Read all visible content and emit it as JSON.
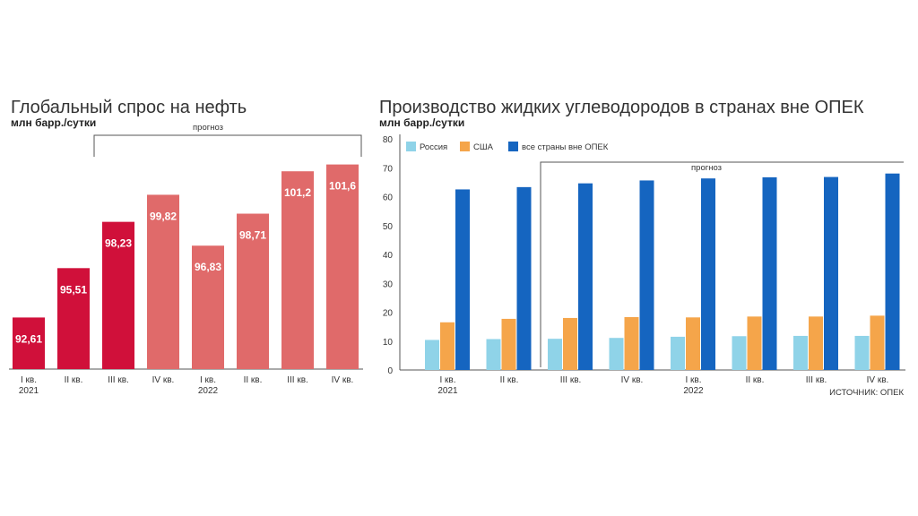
{
  "chart_data": [
    {
      "type": "bar",
      "title": "Глобальный спрос на нефть",
      "ylabel": "млн барр./сутки",
      "forecast_label": "прогноз",
      "categories": [
        "I кв.",
        "II кв.",
        "III кв.",
        "IV кв.",
        "I кв.",
        "II кв.",
        "III кв.",
        "IV кв."
      ],
      "years": [
        "2021",
        "",
        "",
        "",
        "2022",
        "",
        "",
        ""
      ],
      "values": [
        92.61,
        95.51,
        98.23,
        99.82,
        96.83,
        98.71,
        101.2,
        101.6
      ],
      "value_labels": [
        "92,61",
        "95,51",
        "98,23",
        "99,82",
        "96,83",
        "98,71",
        "101,2",
        "101,6"
      ],
      "forecast": [
        false,
        false,
        false,
        true,
        true,
        true,
        true,
        true
      ],
      "colors": {
        "actual": "#d0103a",
        "forecast": "#e06a6a"
      }
    },
    {
      "type": "bar",
      "title": "Производство жидких углеводородов в странах вне ОПЕК",
      "ylabel": "млн барр./сутки",
      "forecast_label": "прогноз",
      "source": "ИСТОЧНИК: ОПЕК",
      "ylim": [
        0,
        80
      ],
      "yticks": [
        0,
        10,
        20,
        30,
        40,
        50,
        60,
        70,
        80
      ],
      "grid": false,
      "categories": [
        "I кв.",
        "II кв.",
        "III кв.",
        "IV кв.",
        "I кв.",
        "II кв.",
        "III кв.",
        "IV кв."
      ],
      "years": [
        "2021",
        "",
        "",
        "",
        "2022",
        "",
        "",
        ""
      ],
      "series": [
        {
          "name": "Россия",
          "color": "#8fd3e8",
          "values": [
            10.4,
            10.7,
            10.8,
            11.1,
            11.5,
            11.7,
            11.8,
            11.8
          ]
        },
        {
          "name": "США",
          "color": "#f5a54a",
          "values": [
            16.5,
            17.7,
            18.0,
            18.3,
            18.2,
            18.5,
            18.5,
            18.8
          ]
        },
        {
          "name": "все страны вне ОПЕК",
          "color": "#1565c0",
          "values": [
            62.5,
            63.3,
            64.6,
            65.6,
            66.3,
            66.7,
            66.8,
            68.0
          ]
        }
      ]
    }
  ]
}
